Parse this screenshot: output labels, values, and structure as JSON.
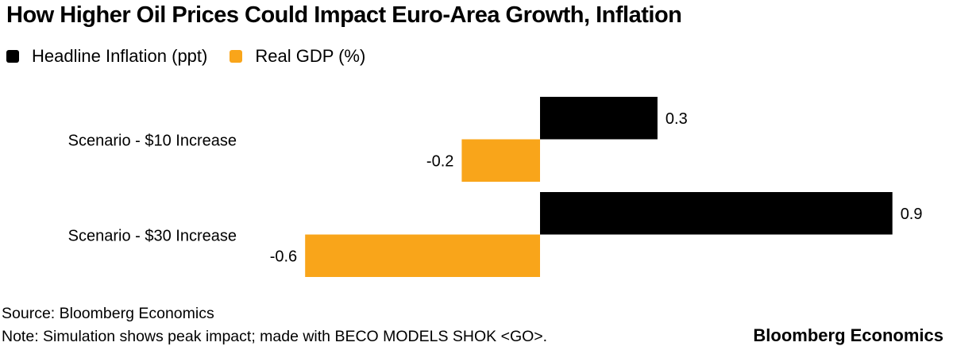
{
  "chart_data": {
    "type": "bar",
    "orientation": "horizontal",
    "title": "How Higher Oil Prices Could Impact Euro-Area Growth, Inflation",
    "categories": [
      "Scenario - $10 Increase",
      "Scenario - $30 Increase"
    ],
    "series": [
      {
        "name": "Headline Inflation (ppt)",
        "color": "#000000",
        "values": [
          0.3,
          0.9
        ],
        "labels": [
          "0.3",
          "0.9"
        ]
      },
      {
        "name": "Real GDP (%)",
        "color": "#F9A51A",
        "values": [
          -0.2,
          -0.6
        ],
        "labels": [
          "-0.2",
          "-0.6"
        ]
      }
    ],
    "legend": "top-left",
    "grid": false
  },
  "footer": {
    "source": "Source: Bloomberg Economics",
    "note": "Note: Simulation shows peak impact; made with BECO MODELS SHOK <GO>.",
    "logo": "Bloomberg Economics"
  }
}
